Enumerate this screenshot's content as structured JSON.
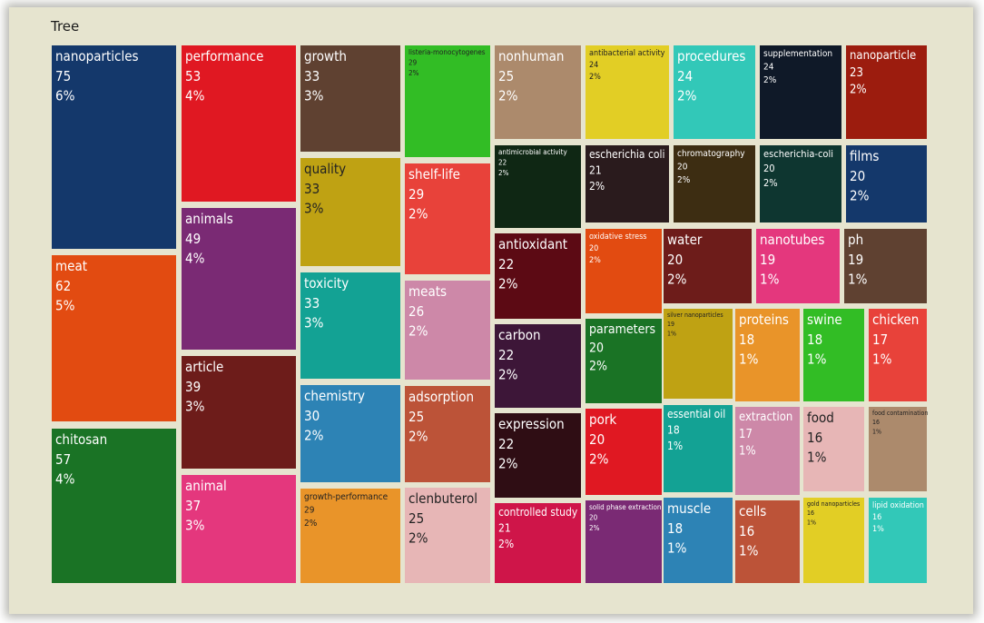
{
  "chart_data": {
    "type": "treemap",
    "title": "Tree",
    "cells": [
      {
        "label": "nanoparticles",
        "value": 75,
        "pct": "6%",
        "color": "#14386b"
      },
      {
        "label": "meat",
        "value": 62,
        "pct": "5%",
        "color": "#e24b11"
      },
      {
        "label": "chitosan",
        "value": 57,
        "pct": "4%",
        "color": "#1a7325"
      },
      {
        "label": "performance",
        "value": 53,
        "pct": "4%",
        "color": "#e01822"
      },
      {
        "label": "animals",
        "value": 49,
        "pct": "4%",
        "color": "#7a2a74"
      },
      {
        "label": "article",
        "value": 39,
        "pct": "3%",
        "color": "#6d1c1a"
      },
      {
        "label": "animal",
        "value": 37,
        "pct": "3%",
        "color": "#e4377d"
      },
      {
        "label": "growth",
        "value": 33,
        "pct": "3%",
        "color": "#5f4131"
      },
      {
        "label": "quality",
        "value": 33,
        "pct": "3%",
        "color": "#bfa213"
      },
      {
        "label": "toxicity",
        "value": 33,
        "pct": "3%",
        "color": "#13a294"
      },
      {
        "label": "chemistry",
        "value": 30,
        "pct": "2%",
        "color": "#2d83b5"
      },
      {
        "label": "growth-performance",
        "value": 29,
        "pct": "2%",
        "color": "#e99429"
      },
      {
        "label": "listeria-monocytogenes",
        "value": 29,
        "pct": "2%",
        "color": "#32bd25"
      },
      {
        "label": "shelf-life",
        "value": 29,
        "pct": "2%",
        "color": "#e8423a"
      },
      {
        "label": "meats",
        "value": 26,
        "pct": "2%",
        "color": "#cd88a8"
      },
      {
        "label": "adsorption",
        "value": 25,
        "pct": "2%",
        "color": "#bc5338"
      },
      {
        "label": "clenbuterol",
        "value": 25,
        "pct": "2%",
        "color": "#e7b6b6"
      },
      {
        "label": "nonhuman",
        "value": 25,
        "pct": "2%",
        "color": "#ac8a6c"
      },
      {
        "label": "antimicrobial activity",
        "value": 22,
        "pct": "2%",
        "color": "#0f2714"
      },
      {
        "label": "antioxidant",
        "value": 22,
        "pct": "2%",
        "color": "#5c0a14"
      },
      {
        "label": "carbon",
        "value": 22,
        "pct": "2%",
        "color": "#3d1638"
      },
      {
        "label": "expression",
        "value": 22,
        "pct": "2%",
        "color": "#2f0d14"
      },
      {
        "label": "controlled study",
        "value": 21,
        "pct": "2%",
        "color": "#cf1549"
      },
      {
        "label": "antibacterial activity",
        "value": 24,
        "pct": "2%",
        "color": "#e2ce25"
      },
      {
        "label": "escherichia coli",
        "value": 21,
        "pct": "2%",
        "color": "#2a1b1d"
      },
      {
        "label": "oxidative stress",
        "value": 20,
        "pct": "2%",
        "color": "#e24b11"
      },
      {
        "label": "parameters",
        "value": 20,
        "pct": "2%",
        "color": "#1a7325"
      },
      {
        "label": "pork",
        "value": 20,
        "pct": "2%",
        "color": "#e01822"
      },
      {
        "label": "solid phase extraction",
        "value": 20,
        "pct": "2%",
        "color": "#7a2a74"
      },
      {
        "label": "procedures",
        "value": 24,
        "pct": "2%",
        "color": "#32c8b8"
      },
      {
        "label": "chromatography",
        "value": 20,
        "pct": "2%",
        "color": "#3d2d12"
      },
      {
        "label": "water",
        "value": 20,
        "pct": "2%",
        "color": "#6d1c1a"
      },
      {
        "label": "silver nanoparticles",
        "value": 19,
        "pct": "1%",
        "color": "#bfa213"
      },
      {
        "label": "essential oil",
        "value": 18,
        "pct": "1%",
        "color": "#13a294"
      },
      {
        "label": "muscle",
        "value": 18,
        "pct": "1%",
        "color": "#2d83b5"
      },
      {
        "label": "supplementation",
        "value": 24,
        "pct": "2%",
        "color": "#0f1928"
      },
      {
        "label": "escherichia-coli",
        "value": 20,
        "pct": "2%",
        "color": "#0e3630"
      },
      {
        "label": "nanotubes",
        "value": 19,
        "pct": "1%",
        "color": "#e4377d"
      },
      {
        "label": "proteins",
        "value": 18,
        "pct": "1%",
        "color": "#e99429"
      },
      {
        "label": "extraction",
        "value": 17,
        "pct": "1%",
        "color": "#cd88a8"
      },
      {
        "label": "cells",
        "value": 16,
        "pct": "1%",
        "color": "#bc5338"
      },
      {
        "label": "nanoparticle",
        "value": 23,
        "pct": "2%",
        "color": "#9c1c0e"
      },
      {
        "label": "films",
        "value": 20,
        "pct": "2%",
        "color": "#14386b"
      },
      {
        "label": "ph",
        "value": 19,
        "pct": "1%",
        "color": "#5f4131"
      },
      {
        "label": "swine",
        "value": 18,
        "pct": "1%",
        "color": "#32bd25"
      },
      {
        "label": "chicken",
        "value": 17,
        "pct": "1%",
        "color": "#e8423a"
      },
      {
        "label": "food",
        "value": 16,
        "pct": "1%",
        "color": "#e7b6b6"
      },
      {
        "label": "gold nanoparticles",
        "value": 16,
        "pct": "1%",
        "color": "#e2ce25"
      },
      {
        "label": "food contamination",
        "value": 16,
        "pct": "1%",
        "color": "#ac8a6c"
      },
      {
        "label": "lipid oxidation",
        "value": 16,
        "pct": "1%",
        "color": "#32c8b8"
      }
    ]
  }
}
